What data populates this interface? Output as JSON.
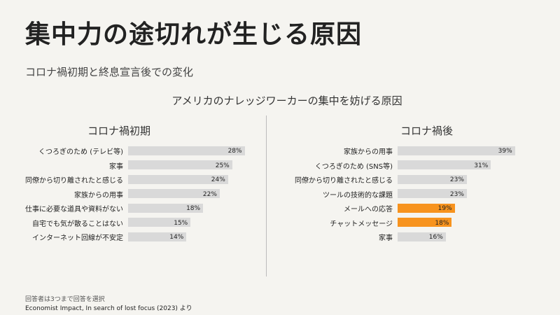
{
  "title": "集中力の途切れが生じる原因",
  "subtitle": "コロナ禍初期と終息宣言後での変化",
  "footnote": "回答者は3つまで回答を選択",
  "source": "Economist Impact, In search of lost focus (2023) より",
  "colors": {
    "background": "#f5f4f0",
    "bar": "#d9d9d9",
    "highlight": "#f7931e"
  },
  "chart_data": [
    {
      "type": "bar",
      "orientation": "horizontal",
      "title": "アメリカのナレッジワーカーの集中を妨げる原因",
      "panel_title": "コロナ禍初期",
      "unit": "%",
      "categories": [
        "くつろぎのため (テレビ等)",
        "家事",
        "同僚から切り離されたと感じる",
        "家族からの用事",
        "仕事に必要な道具や資料がない",
        "自宅でも気が散ることはない",
        "インターネット回線が不安定"
      ],
      "values": [
        28,
        25,
        24,
        22,
        18,
        15,
        14
      ],
      "highlight": [
        false,
        false,
        false,
        false,
        false,
        false,
        false
      ]
    },
    {
      "type": "bar",
      "orientation": "horizontal",
      "panel_title": "コロナ禍後",
      "unit": "%",
      "categories": [
        "家族からの用事",
        "くつろぎのため (SNS等)",
        "同僚から切り離されたと感じる",
        "ツールの技術的な課題",
        "メールへの応答",
        "チャットメッセージ",
        "家事"
      ],
      "values": [
        39,
        31,
        23,
        23,
        19,
        18,
        16
      ],
      "highlight": [
        false,
        false,
        false,
        false,
        true,
        true,
        false
      ]
    }
  ]
}
